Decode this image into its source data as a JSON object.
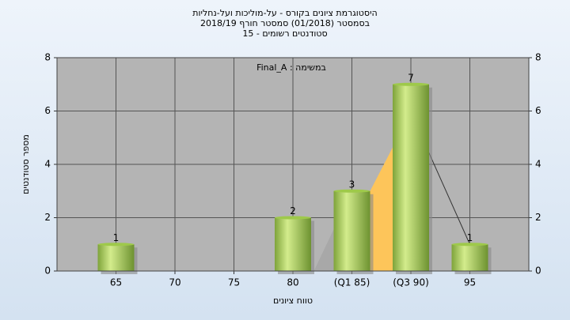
{
  "chart_data": {
    "type": "bar",
    "title": "היסטוגרמת ציונים בקורס - על-מוליכות ועל-נחליות",
    "subtitle": "בסמסטר  (01/2018)  סמסטר חורף 2018/19",
    "subtitle2": "סטודנטים רשומים - 15",
    "annotation": "במשימה : Final_A",
    "x_label": "טווח ציונים",
    "y_label": "מספר סטודנטים",
    "categories": [
      "65",
      "70",
      "75",
      "80",
      "(Q1 85)",
      "(Q3 90)",
      "95"
    ],
    "values": [
      1,
      null,
      null,
      2,
      3,
      7,
      1
    ],
    "color": "#9ec94a",
    "ylim": [
      0,
      8
    ],
    "yticks": [
      0,
      2,
      4,
      6,
      8
    ],
    "y2lim": [
      0,
      8
    ],
    "y2ticks": [
      0,
      2,
      4,
      6,
      8
    ],
    "grid": true
  }
}
